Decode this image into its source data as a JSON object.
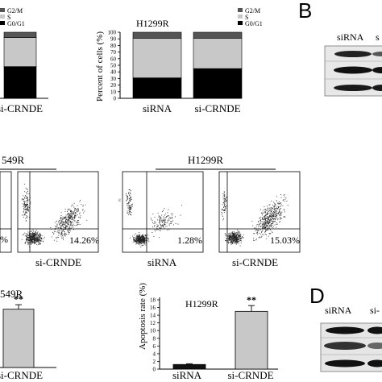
{
  "panel_labels": {
    "b": "B",
    "d": "D"
  },
  "common": {
    "legend": [
      "G2/M",
      "S",
      "G0/G1"
    ],
    "sirna": "siRNA",
    "si_crnde": "si-CRNDE",
    "cell_a549r_partial": "549R",
    "cell_h1299r": "H1299R",
    "pct_axis_label": "Percent of cells (%)",
    "apoptosis_axis_label": "Apoptosis rate (%)",
    "significance": "**"
  },
  "western": {
    "top_labels": [
      "siRNA",
      "s"
    ],
    "bottom_labels": [
      "siRNA",
      "si-"
    ]
  },
  "flow": {
    "a549r_pcts": [
      "%",
      "14.26%"
    ],
    "h1299r_pcts": [
      "1.28%",
      "15.03%"
    ]
  },
  "chart_data": [
    {
      "type": "bar",
      "title": "",
      "categories": [
        "si-CRNDE"
      ],
      "series": [
        {
          "name": "G0/G1",
          "values": [
            48
          ]
        },
        {
          "name": "S",
          "values": [
            44
          ]
        },
        {
          "name": "G2/M",
          "values": [
            8
          ]
        }
      ],
      "stacked": true,
      "ylim": [
        0,
        100
      ],
      "legend": "top"
    },
    {
      "type": "bar",
      "title": "H1299R",
      "categories": [
        "siRNA",
        "si-CRNDE"
      ],
      "series": [
        {
          "name": "G0/G1",
          "values": [
            31,
            45
          ]
        },
        {
          "name": "S",
          "values": [
            60,
            46
          ]
        },
        {
          "name": "G2/M",
          "values": [
            9,
            9
          ]
        }
      ],
      "stacked": true,
      "ylabel": "Percent of cells (%)",
      "ylim": [
        0,
        100
      ],
      "yticks": [
        0,
        10,
        20,
        30,
        40,
        50,
        60,
        70,
        80,
        90,
        100
      ],
      "legend": "top-right"
    },
    {
      "type": "scatter",
      "title": "H1299R",
      "panels": [
        {
          "category": "siRNA",
          "lower_right_percent": "1.28%"
        },
        {
          "category": "si-CRNDE",
          "lower_right_percent": "15.03%"
        }
      ]
    },
    {
      "type": "bar",
      "title": "549R",
      "categories": [
        "si-CRNDE"
      ],
      "values": [
        15.5
      ],
      "significance": [
        "**"
      ]
    },
    {
      "type": "bar",
      "title": "H1299R",
      "categories": [
        "siRNA",
        "si-CRNDE"
      ],
      "values": [
        1.2,
        15.0
      ],
      "errors": [
        0.2,
        1.5
      ],
      "significance": [
        "",
        "**"
      ],
      "ylabel": "Apoptosis rate (%)",
      "ylim": [
        0,
        18
      ],
      "yticks": [
        0,
        2,
        4,
        6,
        8,
        10,
        12,
        14,
        16,
        18
      ]
    }
  ]
}
